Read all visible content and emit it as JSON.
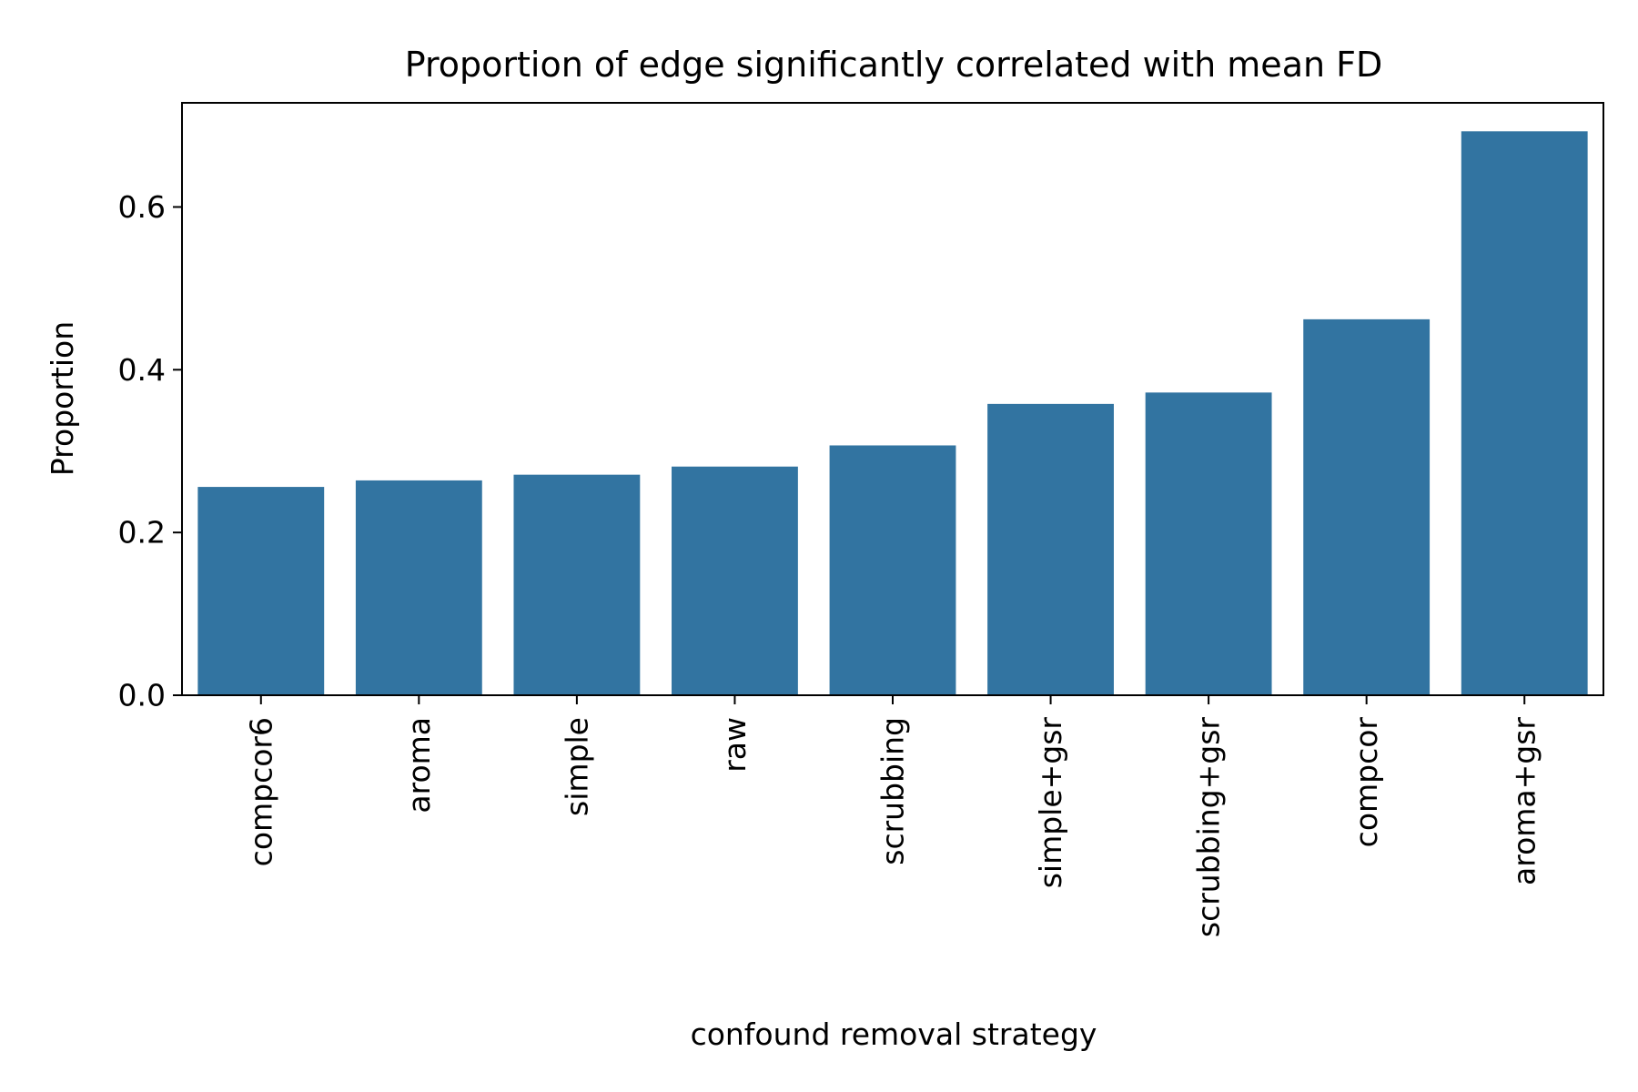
{
  "chart_data": {
    "type": "bar",
    "title": "Proportion of edge significantly correlated with mean FD",
    "xlabel": "confound removal strategy",
    "ylabel": "Proportion",
    "categories": [
      "compcor6",
      "aroma",
      "simple",
      "raw",
      "scrubbing",
      "simple+gsr",
      "scrubbing+gsr",
      "compcor",
      "aroma+gsr"
    ],
    "values": [
      0.256,
      0.264,
      0.271,
      0.281,
      0.307,
      0.358,
      0.372,
      0.462,
      0.693
    ],
    "ylim": [
      0,
      0.728
    ],
    "yticks": [
      0.0,
      0.2,
      0.4,
      0.6
    ],
    "ytick_labels": [
      "0.0",
      "0.2",
      "0.4",
      "0.6"
    ],
    "bar_color": "#3274a1",
    "grid": false,
    "legend": "none"
  }
}
